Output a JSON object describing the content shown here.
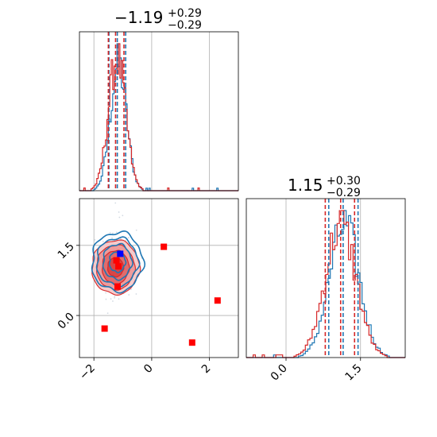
{
  "chart_data": [
    {
      "type": "histogram",
      "panel": "marginal-x",
      "title": {
        "value": "−1.19",
        "sup": "+0.29",
        "sub": "−0.29"
      },
      "xlim": [
        -2.5,
        3.0
      ],
      "grid": true,
      "series": [
        {
          "color": "#1f77b4",
          "quantiles": [
            -1.48,
            -1.19,
            -0.9
          ],
          "center": -1.15,
          "width": 0.28
        },
        {
          "color": "#d62728",
          "quantiles": [
            -1.5,
            -1.25,
            -0.96
          ],
          "center": -1.2,
          "width": 0.3
        }
      ]
    },
    {
      "type": "histogram",
      "panel": "marginal-y",
      "title": {
        "value": "1.15",
        "sup": "+0.30",
        "sub": "−0.29"
      },
      "xlim": [
        -0.8,
        2.4
      ],
      "xticks": [
        "0.0",
        "1.5"
      ],
      "grid": true,
      "series": [
        {
          "color": "#1f77b4",
          "quantiles": [
            0.86,
            1.15,
            1.45
          ],
          "center": 1.17,
          "width": 0.3
        },
        {
          "color": "#d62728",
          "quantiles": [
            0.79,
            1.1,
            1.38
          ],
          "center": 1.1,
          "width": 0.31
        }
      ]
    },
    {
      "type": "scatter",
      "panel": "joint",
      "xlim": [
        -2.5,
        3.0
      ],
      "ylim": [
        -0.9,
        2.5
      ],
      "xticks": [
        "−2",
        "0",
        "2"
      ],
      "yticks": [
        "0.0",
        "1.5"
      ],
      "grid": true,
      "contours": {
        "blue_center": [
          -1.19,
          1.15
        ],
        "red_center": [
          -1.25,
          1.1
        ]
      },
      "points": [
        {
          "x": -1.09,
          "y": 1.32,
          "color": "#0000ff"
        },
        {
          "x": -1.22,
          "y": 1.18,
          "color": "#ff0000"
        },
        {
          "x": -1.15,
          "y": 1.05,
          "color": "#ff0000"
        },
        {
          "x": -1.18,
          "y": 0.62,
          "color": "#ff0000"
        },
        {
          "x": 0.42,
          "y": 1.47,
          "color": "#ff0000"
        },
        {
          "x": 2.28,
          "y": 0.32,
          "color": "#ff0000"
        },
        {
          "x": 1.4,
          "y": -0.58,
          "color": "#ff0000"
        },
        {
          "x": -1.63,
          "y": -0.28,
          "color": "#ff0000"
        }
      ]
    }
  ]
}
